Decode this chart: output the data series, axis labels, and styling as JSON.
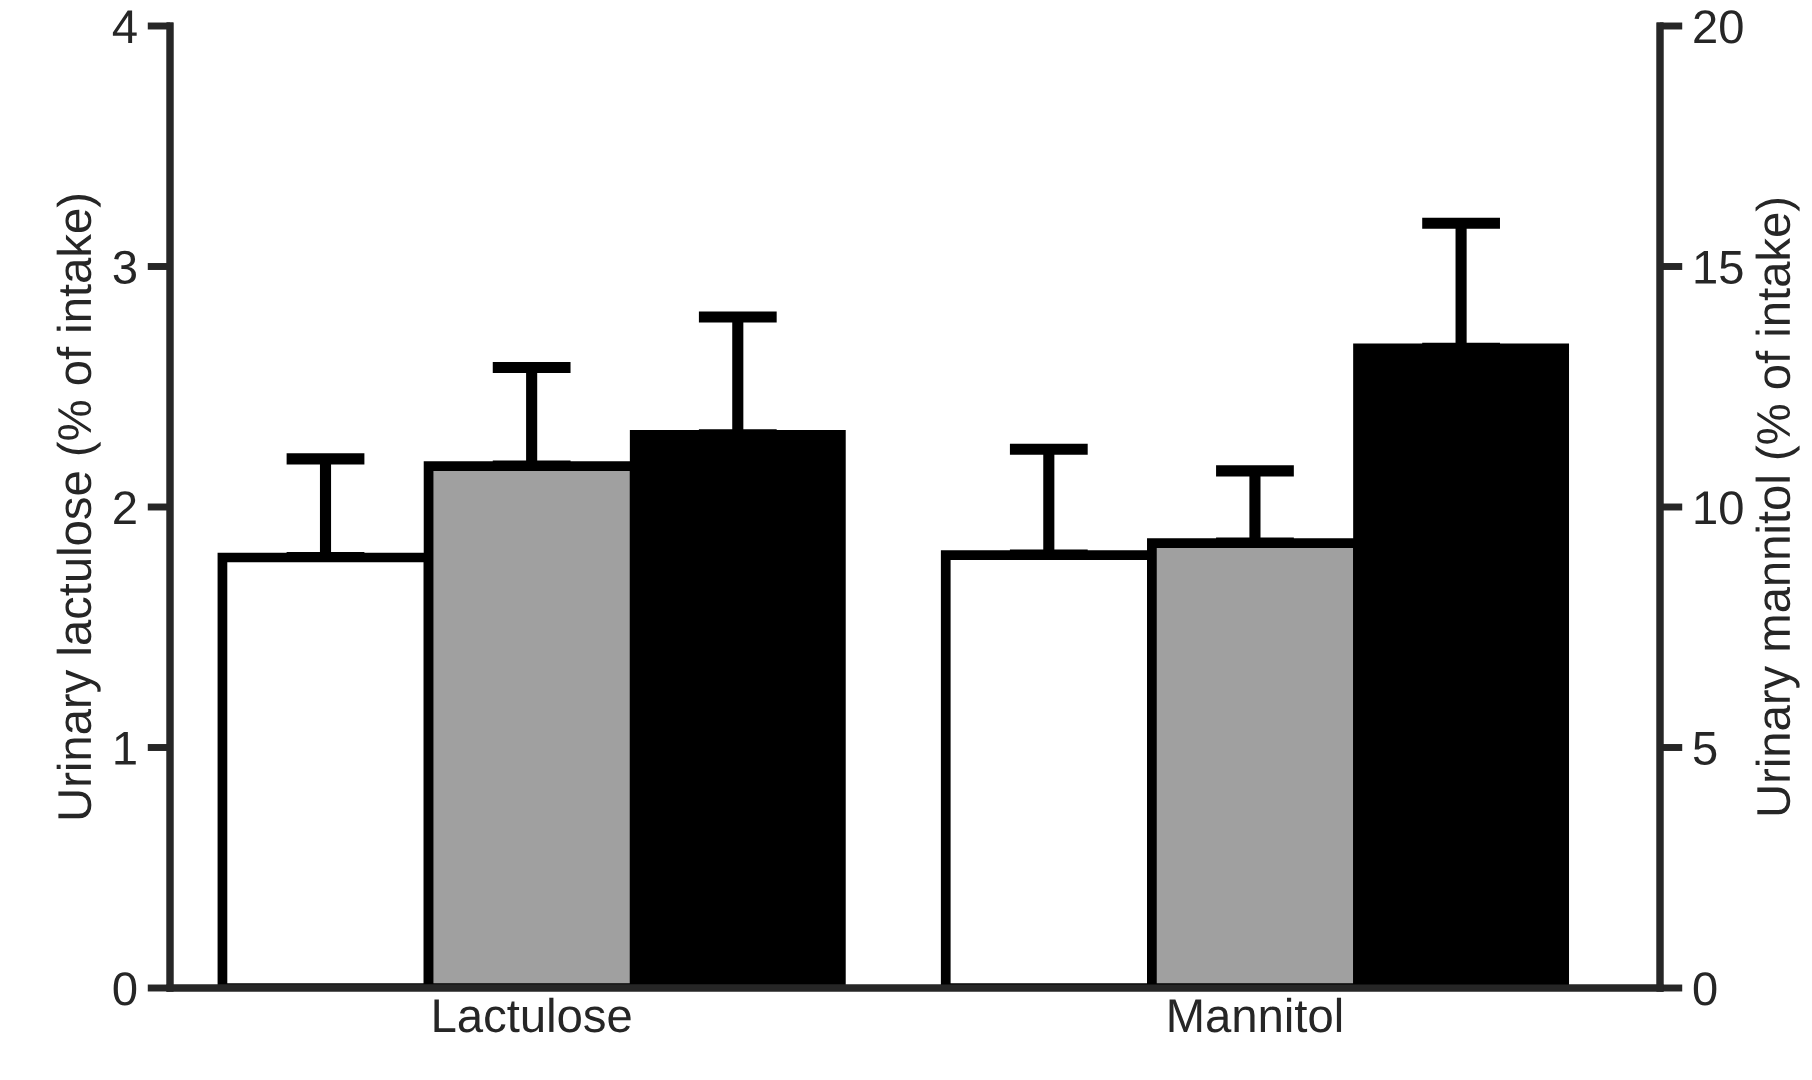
{
  "chart_data": {
    "type": "bar",
    "categories": [
      "Lactulose",
      "Mannitol"
    ],
    "ylabel": "Urinary lactulose (% of intake)",
    "y2label": "Urinary mannitol (% of intake)",
    "ylim": [
      0,
      4
    ],
    "yticks": [
      0,
      1,
      2,
      3,
      4
    ],
    "y2lim": [
      0,
      20
    ],
    "y2ticks": [
      0,
      5,
      10,
      15,
      20
    ],
    "grid": false,
    "legend": false,
    "series": [
      {
        "color": "#ffffff",
        "values": [
          1.79,
          null
        ],
        "errors": [
          [
            1.79,
            2.2
          ],
          null
        ]
      },
      {
        "color": "#a0a0a0",
        "values": [
          2.17,
          null
        ],
        "errors": [
          [
            2.17,
            2.58
          ],
          null
        ]
      },
      {
        "color": "#000000",
        "values": [
          2.3,
          null
        ],
        "errors": [
          [
            2.3,
            2.79
          ],
          null
        ]
      },
      {
        "color": "#ffffff",
        "axis": "y2",
        "values": [
          null,
          9.0
        ],
        "errors": [
          null,
          [
            9.0,
            11.2
          ]
        ]
      },
      {
        "color": "#a0a0a0",
        "axis": "y2",
        "values": [
          null,
          9.25
        ],
        "errors": [
          null,
          [
            9.25,
            10.75
          ]
        ]
      },
      {
        "color": "#000000",
        "axis": "y2",
        "values": [
          null,
          13.3
        ],
        "errors": [
          null,
          [
            13.3,
            15.9
          ]
        ]
      }
    ]
  }
}
